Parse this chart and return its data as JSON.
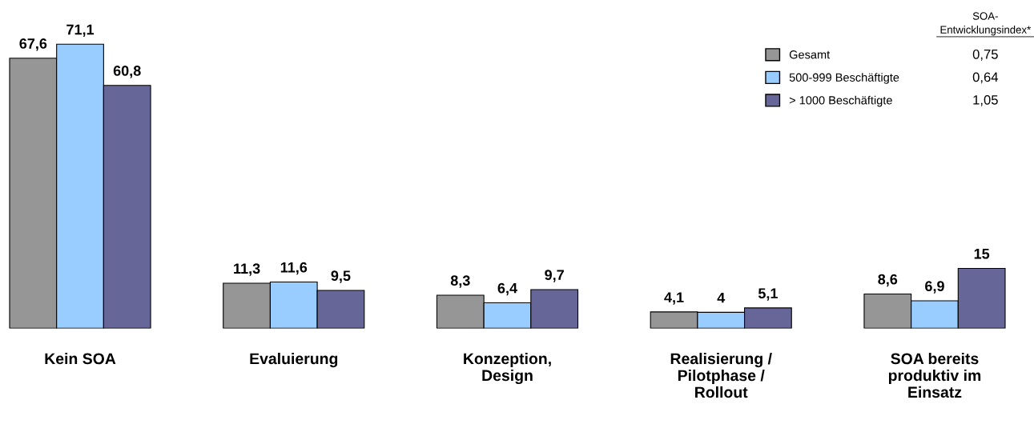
{
  "chart_data": {
    "type": "bar",
    "categories": [
      "Kein SOA",
      "Evaluierung",
      "Konzeption,\nDesign",
      "Realisierung /\nPilotphase /\nRollout",
      "SOA bereits\nproduktiv im\nEinsatz"
    ],
    "series": [
      {
        "name": "Gesamt",
        "color": "#969696",
        "values": [
          67.6,
          11.3,
          8.3,
          4.1,
          8.6
        ],
        "value_labels": [
          "67,6",
          "11,3",
          "8,3",
          "4,1",
          "8,6"
        ]
      },
      {
        "name": "500-999 Beschäftigte",
        "color": "#99ccff",
        "values": [
          71.1,
          11.6,
          6.4,
          4,
          6.9
        ],
        "value_labels": [
          "71,1",
          "11,6",
          "6,4",
          "4",
          "6,9"
        ]
      },
      {
        "name": "> 1000 Beschäftigte",
        "color": "#666699",
        "values": [
          60.8,
          9.5,
          9.7,
          5.1,
          15
        ],
        "value_labels": [
          "60,8",
          "9,5",
          "9,7",
          "5,1",
          "15"
        ]
      }
    ],
    "legend": "top right",
    "legend_title": "SOA-\nEntwicklungsindex*",
    "annotations": [
      "0,75",
      "0,64",
      "1,05"
    ],
    "grid": false
  }
}
